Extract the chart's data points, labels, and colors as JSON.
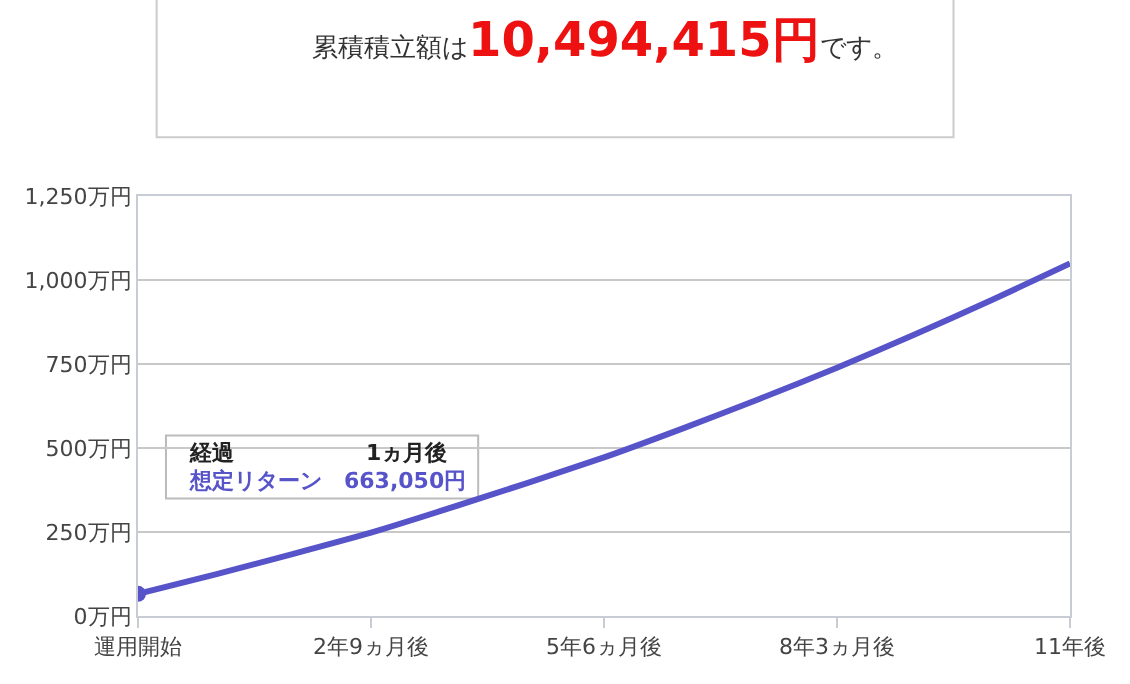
{
  "chart_data": {
    "type": "line",
    "title": "累積積立額は10,494,415円です。",
    "categories": [
      "運用開始",
      null,
      null,
      "2年9ヵ月後",
      null,
      null,
      "5年6ヵ月後",
      null,
      null,
      "8年3ヵ月後",
      null,
      null,
      "11年後"
    ],
    "series": [
      {
        "color": "#5753c9",
        "values": [
          66,
          124,
          185,
          248,
          320,
          395,
          472,
          557,
          646,
          739,
          838,
          941,
          1049
        ]
      }
    ],
    "ylim": [
      0,
      1250
    ],
    "yticks": [
      {
        "value": 0,
        "label": "0万円"
      },
      {
        "value": 250,
        "label": "250万円"
      },
      {
        "value": 500,
        "label": "500万円"
      },
      {
        "value": 750,
        "label": "750万円"
      },
      {
        "value": 1000,
        "label": "1,000万円"
      },
      {
        "value": 1250,
        "label": "1,250万円"
      }
    ],
    "grid": "y",
    "marker": "none",
    "line_style": "solid",
    "annotations": [
      "経過　　　　　　1ヵ月後",
      "想定リターン　663,050円"
    ]
  }
}
